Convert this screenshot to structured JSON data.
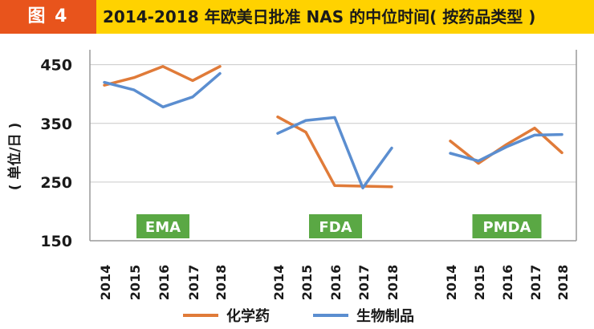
{
  "header": {
    "figure_label": "图 4",
    "title": "2014-2018 年欧美日批准 NAS 的中位时间( 按药品类型 )"
  },
  "colors": {
    "header_bg": "#ffd200",
    "label_bg": "#e8541c",
    "chem": "#e07b39",
    "bio": "#5b8ed0",
    "group_badge": "#5aa844"
  },
  "chart_data": {
    "type": "line",
    "ylabel": "( 单位/日 )",
    "ylim": [
      150,
      470
    ],
    "yticks": [
      150,
      250,
      350,
      450
    ],
    "years": [
      "2014",
      "2015",
      "2016",
      "2017",
      "2018"
    ],
    "groups": [
      {
        "name": "EMA",
        "series": [
          {
            "name": "化学药",
            "values": [
              415,
              428,
              447,
              423,
              447
            ]
          },
          {
            "name": "生物制品",
            "values": [
              420,
              407,
              378,
              395,
              435
            ]
          }
        ]
      },
      {
        "name": "FDA",
        "series": [
          {
            "name": "化学药",
            "values": [
              361,
              335,
              244,
              243,
              242
            ]
          },
          {
            "name": "生物制品",
            "values": [
              333,
              355,
              360,
              240,
              308
            ]
          }
        ]
      },
      {
        "name": "PMDA",
        "series": [
          {
            "name": "化学药",
            "values": [
              320,
              282,
              314,
              342,
              300
            ]
          },
          {
            "name": "生物制品",
            "values": [
              299,
              286,
              310,
              330,
              331
            ]
          }
        ]
      }
    ],
    "legend": [
      "化学药",
      "生物制品"
    ],
    "legend_position": "bottom",
    "grid": "horizontal"
  }
}
